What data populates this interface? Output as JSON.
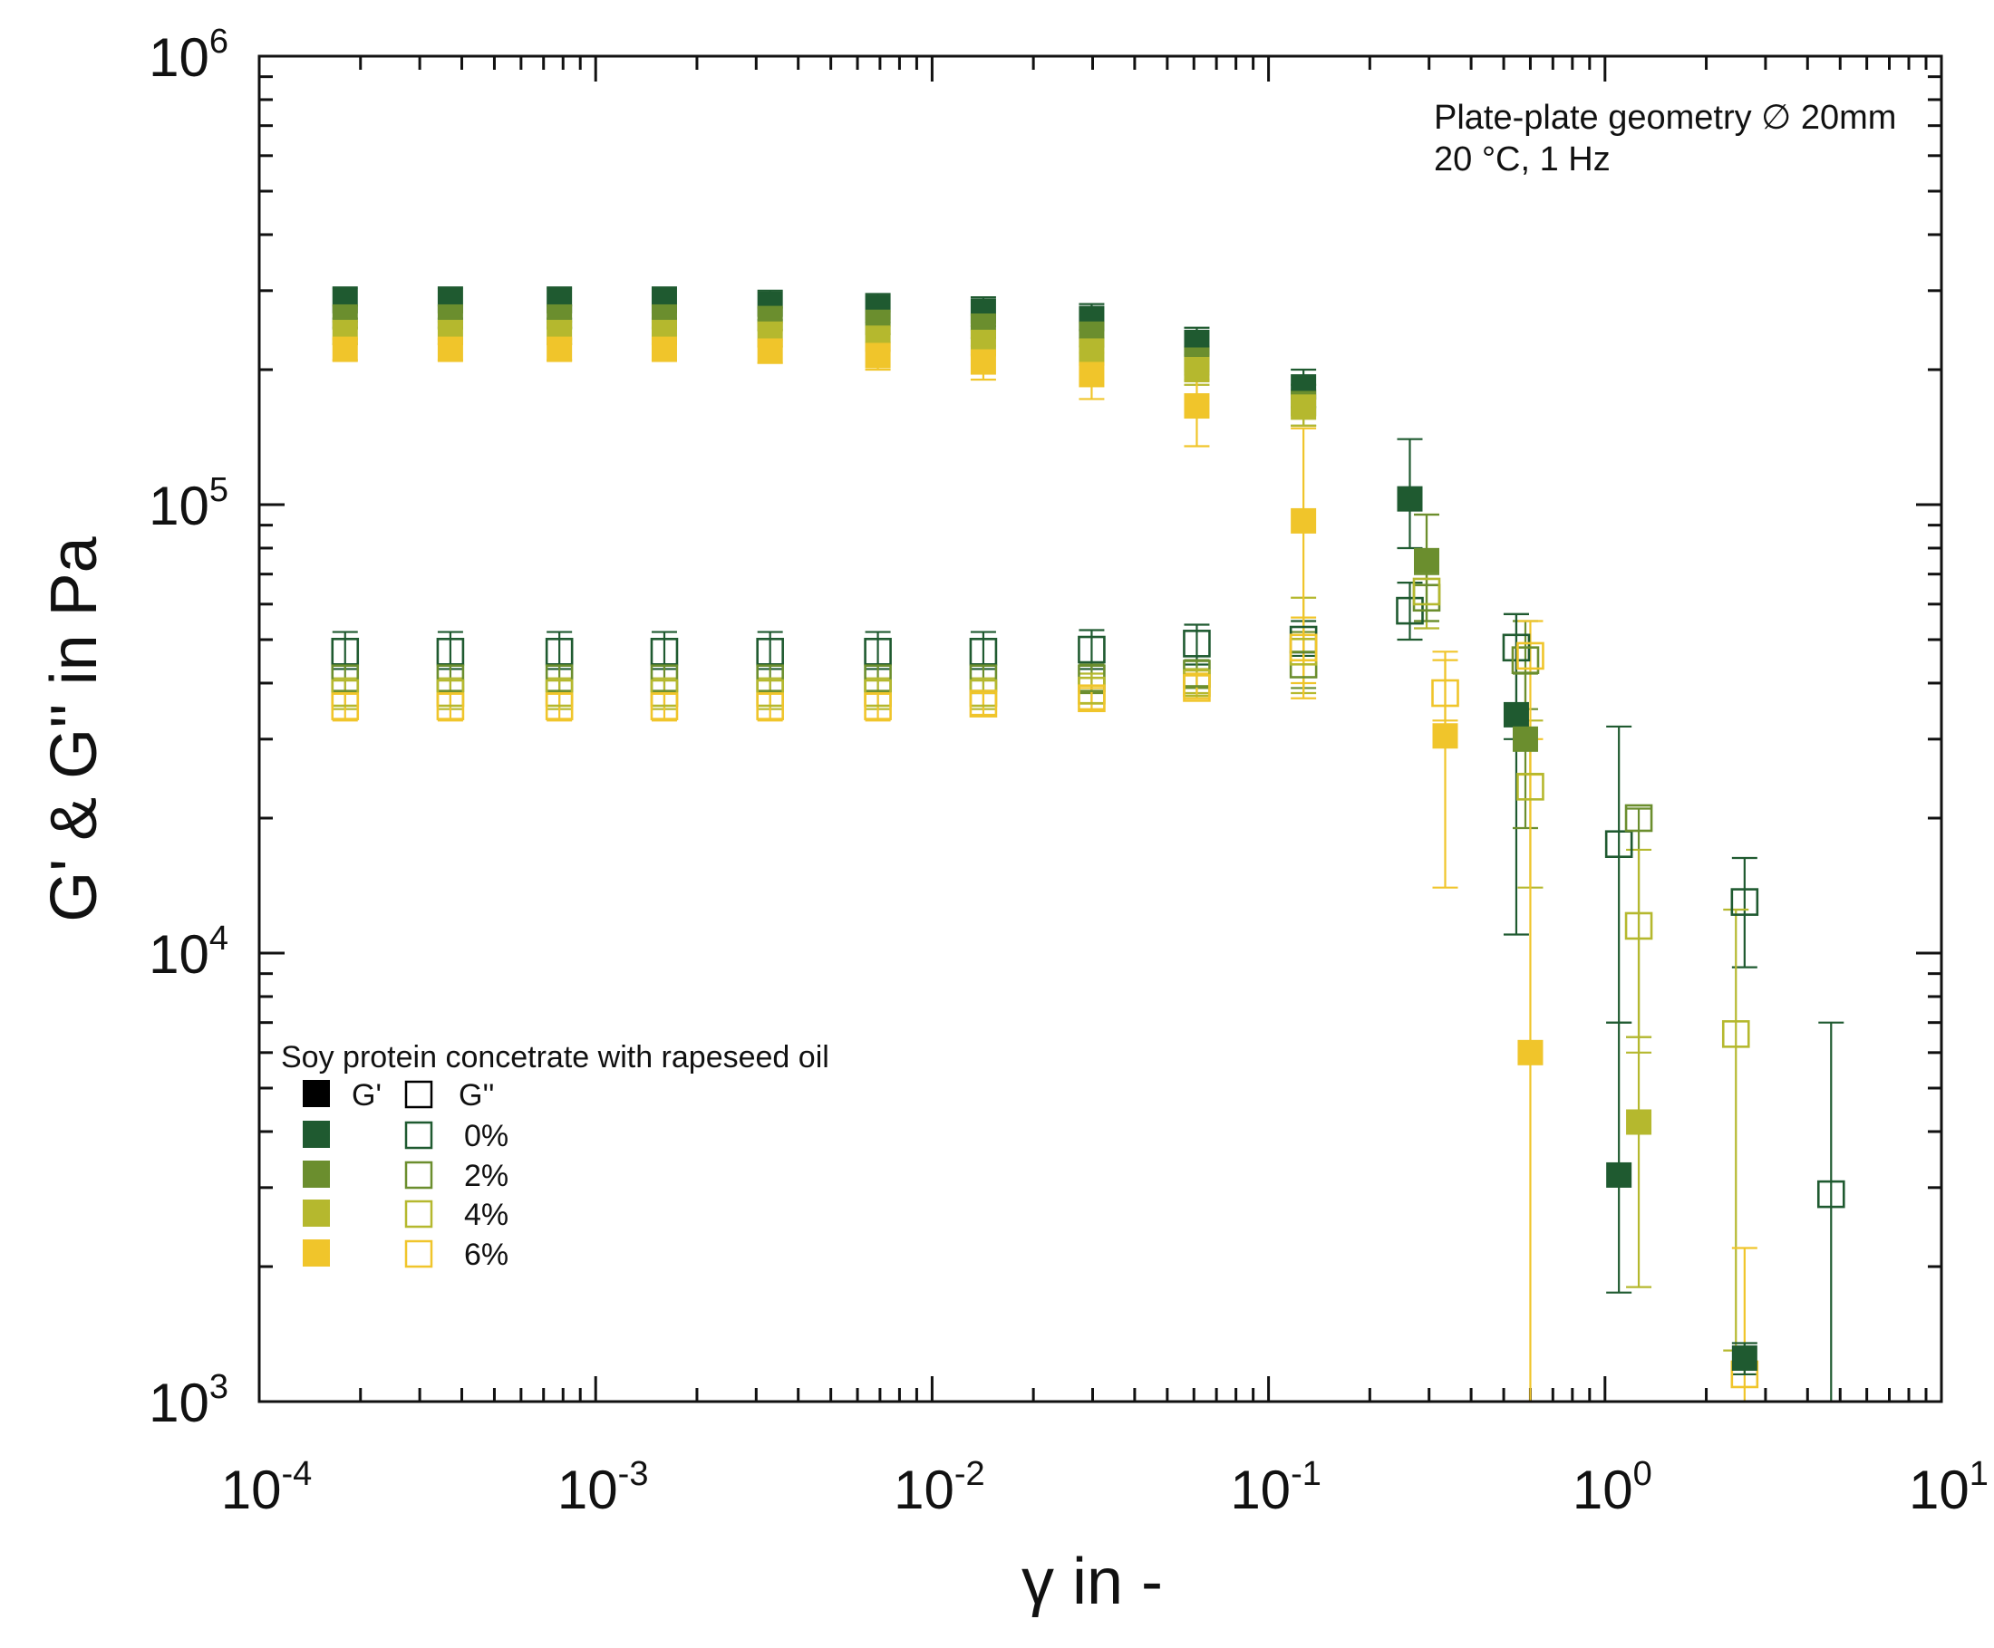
{
  "chart_data": {
    "type": "scatter",
    "scale": {
      "x": "log",
      "y": "log"
    },
    "xlabel": "γ in -",
    "ylabel": "G' & G'' in Pa",
    "xlim": [
      0.0001,
      10
    ],
    "ylim": [
      1000,
      1000000
    ],
    "x_tick_labels": [
      {
        "value": 0.0001,
        "base": "10",
        "exp": "-4"
      },
      {
        "value": 0.001,
        "base": "10",
        "exp": "-3"
      },
      {
        "value": 0.01,
        "base": "10",
        "exp": "-2"
      },
      {
        "value": 0.1,
        "base": "10",
        "exp": "-1"
      },
      {
        "value": 1,
        "base": "10",
        "exp": "0"
      },
      {
        "value": 10,
        "base": "10",
        "exp": "1"
      }
    ],
    "y_tick_labels": [
      {
        "value": 1000,
        "base": "10",
        "exp": "3"
      },
      {
        "value": 10000,
        "base": "10",
        "exp": "4"
      },
      {
        "value": 100000,
        "base": "10",
        "exp": "5"
      },
      {
        "value": 1000000,
        "base": "10",
        "exp": "6"
      }
    ],
    "annotations": [
      "Plate-plate geometry ∅ 20mm",
      "20 °C, 1 Hz"
    ],
    "legend": {
      "position": "bottom-left",
      "title": "Soy protein concetrate with rapeseed oil",
      "header_storage": "G'",
      "header_loss": "G''",
      "header_color": "#000000",
      "entries": [
        {
          "label": "0%",
          "color": "#1f5a30"
        },
        {
          "label": "2%",
          "color": "#6b8e2e"
        },
        {
          "label": "4%",
          "color": "#b5b82e"
        },
        {
          "label": "6%",
          "color": "#f0c52b"
        }
      ]
    },
    "series": [
      {
        "name": "0% G'",
        "oil": "0%",
        "modulus": "G'",
        "filled": true,
        "color": "#1f5a30",
        "x": [
          0.00018,
          0.00037,
          0.00078,
          0.0016,
          0.0033,
          0.0069,
          0.0142,
          0.0298,
          0.0612,
          0.127,
          0.263,
          0.545,
          1.1,
          2.6
        ],
        "y": [
          285000,
          285000,
          285000,
          285000,
          280000,
          275000,
          270000,
          260000,
          230000,
          183000,
          103000,
          34000,
          3200,
          1250
        ],
        "err_low": [
          260000,
          260000,
          260000,
          260000,
          258000,
          255000,
          250000,
          245000,
          215000,
          165000,
          80000,
          11000,
          1750,
          1150
        ],
        "err_high": [
          305000,
          305000,
          305000,
          305000,
          300000,
          295000,
          290000,
          280000,
          248000,
          200000,
          140000,
          57000,
          7000,
          1350
        ]
      },
      {
        "name": "2% G'",
        "oil": "2%",
        "modulus": "G'",
        "filled": true,
        "color": "#6b8e2e",
        "x": [
          0.00018,
          0.00037,
          0.00078,
          0.0016,
          0.0033,
          0.0069,
          0.0142,
          0.0298,
          0.0612,
          0.127,
          0.295,
          0.58
        ],
        "y": [
          262000,
          262000,
          262000,
          262000,
          260000,
          255000,
          250000,
          240000,
          210000,
          168000,
          75000,
          30000
        ],
        "err_low": [
          248000,
          248000,
          248000,
          248000,
          245000,
          240000,
          235000,
          225000,
          195000,
          150000,
          55000,
          19000
        ],
        "err_high": [
          278000,
          278000,
          278000,
          278000,
          275000,
          270000,
          265000,
          255000,
          225000,
          185000,
          95000,
          42000
        ]
      },
      {
        "name": "4% G'",
        "oil": "4%",
        "modulus": "G'",
        "filled": true,
        "color": "#b5b82e",
        "x": [
          0.00018,
          0.00037,
          0.00078,
          0.0016,
          0.0033,
          0.0069,
          0.0142,
          0.0298,
          0.0612,
          0.127,
          1.26
        ],
        "y": [
          242000,
          242000,
          242000,
          242000,
          240000,
          235000,
          230000,
          220000,
          200000,
          165000,
          4200
        ],
        "err_low": [
          228000,
          228000,
          228000,
          228000,
          225000,
          220000,
          215000,
          205000,
          185000,
          150000,
          1800
        ],
        "err_high": [
          256000,
          256000,
          256000,
          256000,
          255000,
          250000,
          245000,
          235000,
          215000,
          180000,
          6500
        ]
      },
      {
        "name": "6% G'",
        "oil": "6%",
        "modulus": "G'",
        "filled": true,
        "color": "#f0c52b",
        "x": [
          0.00018,
          0.00037,
          0.00078,
          0.0016,
          0.0033,
          0.0069,
          0.0142,
          0.0298,
          0.0612,
          0.127,
          0.335,
          0.6
        ],
        "y": [
          222000,
          222000,
          222000,
          222000,
          220000,
          215000,
          208000,
          195000,
          166000,
          92000,
          30500,
          6000
        ],
        "err_low": [
          210000,
          210000,
          210000,
          210000,
          207000,
          200000,
          190000,
          172000,
          135000,
          40000,
          14000,
          1000
        ],
        "err_high": [
          234000,
          234000,
          234000,
          234000,
          233000,
          230000,
          226000,
          218000,
          190000,
          148000,
          47000,
          30000
        ]
      },
      {
        "name": "0% G''",
        "oil": "0%",
        "modulus": "G''",
        "filled": false,
        "color": "#1f5a30",
        "x": [
          0.00018,
          0.00037,
          0.00078,
          0.0016,
          0.0033,
          0.0069,
          0.0142,
          0.0298,
          0.0612,
          0.127,
          0.263,
          0.545,
          1.1,
          2.6,
          4.7
        ],
        "y": [
          47000,
          47000,
          47000,
          47000,
          47000,
          47000,
          47000,
          47500,
          49000,
          50000,
          58000,
          48000,
          17500,
          13000,
          2900
        ],
        "err_low": [
          43000,
          43000,
          43000,
          43000,
          43000,
          43000,
          43000,
          43000,
          44000,
          46000,
          50000,
          30000,
          7000,
          9300,
          1000
        ],
        "err_high": [
          52000,
          52000,
          52000,
          52000,
          52000,
          52000,
          52000,
          52500,
          54000,
          55000,
          67000,
          57000,
          32000,
          16300,
          7000
        ]
      },
      {
        "name": "2% G''",
        "oil": "2%",
        "modulus": "G''",
        "filled": false,
        "color": "#6b8e2e",
        "x": [
          0.00018,
          0.00037,
          0.00078,
          0.0016,
          0.0033,
          0.0069,
          0.0142,
          0.0298,
          0.0612,
          0.127,
          0.295,
          0.58,
          1.26
        ],
        "y": [
          41000,
          41000,
          41000,
          41000,
          41000,
          41000,
          41000,
          41000,
          42000,
          44000,
          62000,
          45000,
          20000
        ],
        "err_low": [
          38000,
          38000,
          38000,
          38000,
          38000,
          38000,
          38000,
          38000,
          39000,
          39000,
          55000,
          35000,
          6500
        ],
        "err_high": [
          44000,
          44000,
          44000,
          44000,
          44000,
          44000,
          44000,
          44000,
          45000,
          52000,
          70000,
          55000,
          21000
        ]
      },
      {
        "name": "4% G''",
        "oil": "4%",
        "modulus": "G''",
        "filled": false,
        "color": "#b5b82e",
        "x": [
          0.00018,
          0.00037,
          0.00078,
          0.0016,
          0.0033,
          0.0069,
          0.0142,
          0.0298,
          0.0612,
          0.127,
          0.295,
          0.6,
          1.26,
          2.45
        ],
        "y": [
          38000,
          38000,
          38000,
          38000,
          38000,
          38000,
          38000,
          38500,
          40000,
          47000,
          64000,
          23500,
          11500,
          6600
        ],
        "err_low": [
          35000,
          35000,
          35000,
          35000,
          35000,
          35000,
          35000,
          36000,
          38000,
          38000,
          53000,
          14000,
          6000,
          1300
        ],
        "err_high": [
          41000,
          41000,
          41000,
          41000,
          41000,
          41000,
          41000,
          42000,
          43000,
          62000,
          95000,
          33000,
          17000,
          12500
        ]
      },
      {
        "name": "6% G''",
        "oil": "6%",
        "modulus": "G''",
        "filled": false,
        "color": "#f0c52b",
        "x": [
          0.00018,
          0.00037,
          0.00078,
          0.0016,
          0.0033,
          0.0069,
          0.0142,
          0.0298,
          0.0612,
          0.127,
          0.335,
          0.6,
          2.6
        ],
        "y": [
          35500,
          35500,
          35500,
          35500,
          35500,
          35500,
          36000,
          37000,
          39000,
          48000,
          38000,
          46000,
          1150
        ],
        "err_low": [
          33000,
          33000,
          33000,
          33000,
          33000,
          33000,
          34000,
          35000,
          37000,
          37000,
          33000,
          25000,
          1000
        ],
        "err_high": [
          38000,
          38000,
          38000,
          38000,
          38000,
          38000,
          38000,
          39000,
          42000,
          56000,
          45000,
          55000,
          2200
        ]
      }
    ]
  }
}
